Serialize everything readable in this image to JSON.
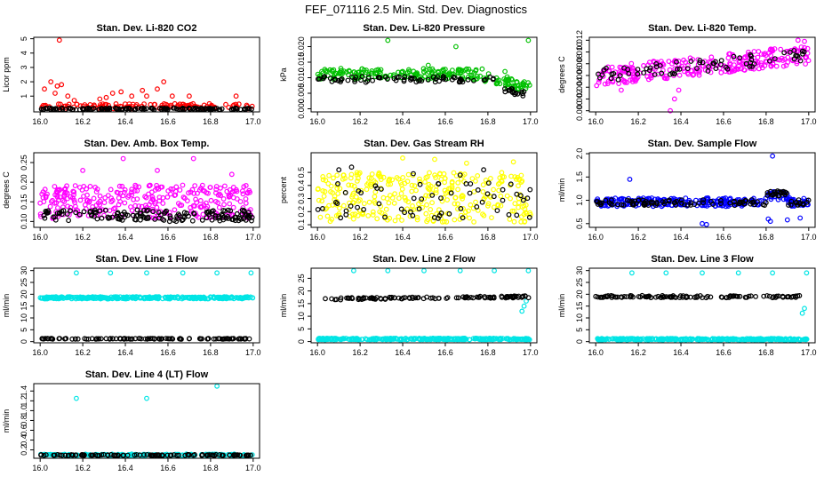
{
  "page_title": "FEF_071116  2.5 Min. Std. Dev. Diagnostics",
  "chart_data": [
    {
      "type": "scatter",
      "title": "Stan. Dev. Li-820 CO2",
      "ylabel": "Licor ppm",
      "xlim": [
        15.97,
        17.03
      ],
      "ylim": [
        -0.1,
        5.1
      ],
      "xticks": [
        "16.0",
        "16.2",
        "16.4",
        "16.6",
        "16.8",
        "17.0"
      ],
      "yticks": [
        {
          "v": 1,
          "label": "1"
        },
        {
          "v": 2,
          "label": "2"
        },
        {
          "v": 3,
          "label": "3"
        },
        {
          "v": 4,
          "label": "4"
        },
        {
          "v": 5,
          "label": "5"
        }
      ],
      "series": [
        {
          "name": "Li-820 CO2 (red)",
          "color": "#ff0000",
          "profile": "co2_red",
          "x": [
            16.02,
            16.05,
            16.07,
            16.08,
            16.09,
            16.1,
            16.13,
            16.16,
            16.28,
            16.31,
            16.34,
            16.38,
            16.43,
            16.48,
            16.5,
            16.55,
            16.58,
            16.62,
            16.7,
            16.92
          ],
          "y": [
            1.5,
            2.0,
            1.2,
            1.7,
            4.9,
            1.8,
            1.0,
            0.7,
            0.8,
            0.9,
            1.2,
            1.3,
            1.0,
            1.4,
            1.0,
            1.5,
            2.0,
            1.0,
            1.0,
            1.0
          ]
        },
        {
          "name": "Li-820 CO2 (black)",
          "color": "#000000",
          "profile": "co2_black",
          "x": [],
          "y": []
        }
      ]
    },
    {
      "type": "scatter",
      "title": "Stan. Dev. Li-820 Pressure",
      "ylabel": "kPa",
      "xlim": [
        15.97,
        17.03
      ],
      "ylim": [
        -0.001,
        0.023
      ],
      "xticks": [
        "16.0",
        "16.2",
        "16.4",
        "16.6",
        "16.8",
        "17.0"
      ],
      "yticks": [
        {
          "v": 0,
          "label": "0.000"
        },
        {
          "v": 0.005,
          "label": "0.005"
        },
        {
          "v": 0.01,
          "label": "0.010"
        },
        {
          "v": 0.015,
          "label": "0.015"
        },
        {
          "v": 0.02,
          "label": "0.020"
        }
      ],
      "series": [
        {
          "name": "Li-820 Pressure (green)",
          "color": "#00c000",
          "profile": "press_green",
          "x": [
            16.02,
            16.08,
            16.11,
            16.15,
            16.24,
            16.33,
            16.4,
            16.52,
            16.65,
            16.72,
            16.88,
            16.99
          ],
          "y": [
            0.012,
            0.011,
            0.013,
            0.012,
            0.011,
            0.022,
            0.012,
            0.014,
            0.02,
            0.01,
            0.012,
            0.022
          ]
        },
        {
          "name": "Li-820 Pressure (black)",
          "color": "#000000",
          "profile": "press_black",
          "x": [],
          "y": []
        }
      ]
    },
    {
      "type": "scatter",
      "title": "Stan. Dev. Li-820 Temp.",
      "ylabel": "degrees C",
      "xlim": [
        15.97,
        17.03
      ],
      "ylim": [
        -0.0002,
        0.0125
      ],
      "xticks": [
        "16.0",
        "16.2",
        "16.4",
        "16.6",
        "16.8",
        "17.0"
      ],
      "yticks": [
        {
          "v": 0,
          "label": "0.000"
        },
        {
          "v": 0.002,
          "label": "0.002"
        },
        {
          "v": 0.004,
          "label": "0.004"
        },
        {
          "v": 0.006,
          "label": "0.006"
        },
        {
          "v": 0.008,
          "label": "0.008"
        },
        {
          "v": 0.01,
          "label": "0.010"
        },
        {
          "v": 0.012,
          "label": "0.012"
        }
      ],
      "series": [
        {
          "name": "Li-820 Temp (magenta)",
          "color": "#ff00ff",
          "profile": "temp_magenta",
          "x": [
            16.35,
            16.37,
            16.39,
            16.12,
            16.06,
            16.95,
            16.98
          ],
          "y": [
            0.0,
            0.002,
            0.0035,
            0.0035,
            0.005,
            0.012,
            0.0118
          ]
        },
        {
          "name": "Li-820 Temp (black)",
          "color": "#000000",
          "profile": "temp_black",
          "x": [],
          "y": []
        }
      ]
    },
    {
      "type": "scatter",
      "title": "Stan. Dev. Amb. Box Temp.",
      "ylabel": "degrees C",
      "xlim": [
        15.97,
        17.03
      ],
      "ylim": [
        0.085,
        0.275
      ],
      "xticks": [
        "16.0",
        "16.2",
        "16.4",
        "16.6",
        "16.8",
        "17.0"
      ],
      "yticks": [
        {
          "v": 0.1,
          "label": "0.10"
        },
        {
          "v": 0.15,
          "label": "0.15"
        },
        {
          "v": 0.2,
          "label": "0.20"
        },
        {
          "v": 0.25,
          "label": "0.25"
        }
      ],
      "series": [
        {
          "name": "Amb. Box Temp (magenta)",
          "color": "#ff00ff",
          "profile": "box_magenta",
          "x": [
            16.39,
            16.72,
            16.2,
            16.55,
            16.9
          ],
          "y": [
            0.26,
            0.26,
            0.23,
            0.23,
            0.22
          ]
        },
        {
          "name": "Amb. Box Temp (black)",
          "color": "#000000",
          "profile": "box_black",
          "x": [],
          "y": []
        }
      ]
    },
    {
      "type": "scatter",
      "title": "Stan. Dev. Gas Stream RH",
      "ylabel": "percent",
      "xlim": [
        15.97,
        17.03
      ],
      "ylim": [
        0.08,
        0.65
      ],
      "xticks": [
        "16.0",
        "16.2",
        "16.4",
        "16.6",
        "16.8",
        "17.0"
      ],
      "yticks": [
        {
          "v": 0.1,
          "label": "0.1"
        },
        {
          "v": 0.2,
          "label": "0.2"
        },
        {
          "v": 0.3,
          "label": "0.3"
        },
        {
          "v": 0.4,
          "label": "0.4"
        },
        {
          "v": 0.5,
          "label": "0.5"
        }
      ],
      "series": [
        {
          "name": "Gas Stream RH (yellow)",
          "color": "#ffff00",
          "profile": "rh_yellow",
          "x": [
            16.4,
            16.55,
            16.92,
            16.7
          ],
          "y": [
            0.61,
            0.6,
            0.58,
            0.57
          ]
        },
        {
          "name": "Gas Stream RH (black)",
          "color": "#000000",
          "profile": "rh_black",
          "x": [
            16.1,
            16.16,
            16.45,
            16.67,
            16.78
          ],
          "y": [
            0.52,
            0.54,
            0.49,
            0.48,
            0.52
          ]
        }
      ]
    },
    {
      "type": "scatter",
      "title": "Stan. Dev. Sample Flow",
      "ylabel": "ml/min",
      "xlim": [
        15.97,
        17.03
      ],
      "ylim": [
        0.42,
        2.02
      ],
      "xticks": [
        "16.0",
        "16.2",
        "16.4",
        "16.6",
        "16.8",
        "17.0"
      ],
      "yticks": [
        {
          "v": 0.5,
          "label": "0.5"
        },
        {
          "v": 1,
          "label": "1.0"
        },
        {
          "v": 1.5,
          "label": "1.5"
        },
        {
          "v": 2,
          "label": "2.0"
        }
      ],
      "series": [
        {
          "name": "Sample Flow (blue)",
          "color": "#0000ff",
          "profile": "sflow_blue",
          "x": [
            16.83,
            16.16,
            16.5,
            16.52,
            16.82,
            16.81,
            16.9,
            16.96
          ],
          "y": [
            1.95,
            1.45,
            0.5,
            0.48,
            0.55,
            0.6,
            0.58,
            0.62
          ]
        },
        {
          "name": "Sample Flow (black)",
          "color": "#000000",
          "profile": "sflow_black",
          "x": [],
          "y": []
        }
      ]
    },
    {
      "type": "scatter",
      "title": "Stan. Dev. Line 1 Flow",
      "ylabel": "ml/min",
      "xlim": [
        15.97,
        17.03
      ],
      "ylim": [
        -0.5,
        31
      ],
      "xticks": [
        "16.0",
        "16.2",
        "16.4",
        "16.6",
        "16.8",
        "17.0"
      ],
      "yticks": [
        {
          "v": 0,
          "label": "0"
        },
        {
          "v": 5,
          "label": "5"
        },
        {
          "v": 10,
          "label": "10"
        },
        {
          "v": 15,
          "label": "15"
        },
        {
          "v": 20,
          "label": "20"
        },
        {
          "v": 25,
          "label": "25"
        },
        {
          "v": 30,
          "label": "30"
        }
      ],
      "series": [
        {
          "name": "Line 1 Flow (cyan)",
          "color": "#00e5e5",
          "profile": "l1_cyan",
          "x": [
            16.17,
            16.33,
            16.5,
            16.67,
            16.83,
            16.99
          ],
          "y": [
            29,
            29,
            29,
            29,
            29,
            29
          ]
        },
        {
          "name": "Line 1 Flow (black)",
          "color": "#000000",
          "profile": "l1_black",
          "x": [],
          "y": []
        }
      ]
    },
    {
      "type": "scatter",
      "title": "Stan. Dev. Line 2 Flow",
      "ylabel": "ml/min",
      "xlim": [
        15.97,
        17.03
      ],
      "ylim": [
        -0.5,
        29
      ],
      "xticks": [
        "16.0",
        "16.2",
        "16.4",
        "16.6",
        "16.8",
        "17.0"
      ],
      "yticks": [
        {
          "v": 0,
          "label": "0"
        },
        {
          "v": 5,
          "label": "5"
        },
        {
          "v": 10,
          "label": "10"
        },
        {
          "v": 15,
          "label": "15"
        },
        {
          "v": 20,
          "label": "20"
        },
        {
          "v": 25,
          "label": "25"
        }
      ],
      "series": [
        {
          "name": "Line 2 Flow (cyan)",
          "color": "#00e5e5",
          "profile": "l2_cyan",
          "x": [
            16.17,
            16.33,
            16.5,
            16.67,
            16.83,
            16.99,
            16.98,
            16.97,
            16.96
          ],
          "y": [
            28,
            28,
            28,
            28,
            28,
            28,
            16,
            14,
            12
          ]
        },
        {
          "name": "Line 2 Flow (black)",
          "color": "#000000",
          "profile": "l2_black",
          "x": [],
          "y": []
        }
      ]
    },
    {
      "type": "scatter",
      "title": "Stan. Dev. Line 3 Flow",
      "ylabel": "ml/min",
      "xlim": [
        15.97,
        17.03
      ],
      "ylim": [
        -0.5,
        31
      ],
      "xticks": [
        "16.0",
        "16.2",
        "16.4",
        "16.6",
        "16.8",
        "17.0"
      ],
      "yticks": [
        {
          "v": 0,
          "label": "0"
        },
        {
          "v": 5,
          "label": "5"
        },
        {
          "v": 10,
          "label": "10"
        },
        {
          "v": 15,
          "label": "15"
        },
        {
          "v": 20,
          "label": "20"
        },
        {
          "v": 25,
          "label": "25"
        },
        {
          "v": 30,
          "label": "30"
        }
      ],
      "series": [
        {
          "name": "Line 3 Flow (cyan)",
          "color": "#00e5e5",
          "profile": "l3_cyan",
          "x": [
            16.17,
            16.33,
            16.5,
            16.67,
            16.83,
            16.99,
            16.98,
            16.97
          ],
          "y": [
            29,
            29,
            29,
            29,
            29,
            29,
            14,
            12
          ]
        },
        {
          "name": "Line 3 Flow (black)",
          "color": "#000000",
          "profile": "l3_black",
          "x": [],
          "y": []
        }
      ]
    },
    {
      "type": "scatter",
      "title": "Stan. Dev. Line 4 (LT) Flow",
      "ylabel": "ml/min",
      "xlim": [
        15.97,
        17.03
      ],
      "ylim": [
        0.03,
        1.55
      ],
      "xticks": [
        "16.0",
        "16.2",
        "16.4",
        "16.6",
        "16.8",
        "17.0"
      ],
      "yticks": [
        {
          "v": 0.2,
          "label": "0.2"
        },
        {
          "v": 0.4,
          "label": "0.4"
        },
        {
          "v": 0.6,
          "label": "0.6"
        },
        {
          "v": 0.8,
          "label": "0.8"
        },
        {
          "v": 1.0,
          "label": "1.0"
        },
        {
          "v": 1.2,
          "label": "1.2"
        },
        {
          "v": 1.4,
          "label": "1.4"
        }
      ],
      "series": [
        {
          "name": "Line 4 Flow (cyan)",
          "color": "#00e5e5",
          "profile": "l4_cyan",
          "x": [
            16.17,
            16.5,
            16.83
          ],
          "y": [
            1.25,
            1.25,
            1.5
          ]
        },
        {
          "name": "Line 4 Flow (black)",
          "color": "#000000",
          "profile": "l4_black",
          "x": [],
          "y": []
        }
      ]
    }
  ]
}
